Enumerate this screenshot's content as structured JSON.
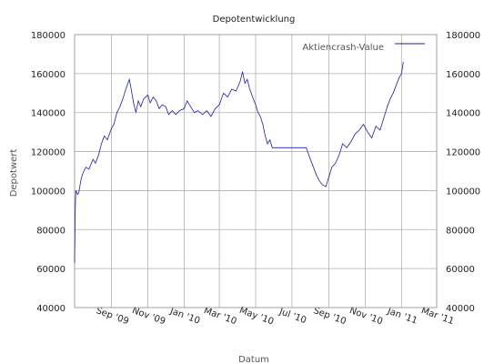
{
  "chart_data": {
    "type": "line",
    "title": "Depotentwicklung",
    "xlabel": "Datum",
    "ylabel": "Depotwert",
    "ylim": [
      40000,
      180000
    ],
    "y_ticks": [
      40000,
      60000,
      80000,
      100000,
      120000,
      140000,
      160000,
      180000
    ],
    "x_range": [
      "2009-07-01",
      "2011-03-01"
    ],
    "x_ticks": [
      {
        "date": "2009-09-01",
        "label": "Sep '09"
      },
      {
        "date": "2009-11-01",
        "label": "Nov '09"
      },
      {
        "date": "2010-01-01",
        "label": "Jan '10"
      },
      {
        "date": "2010-03-01",
        "label": "Mar '10"
      },
      {
        "date": "2010-05-01",
        "label": "May '10"
      },
      {
        "date": "2010-07-01",
        "label": "Jul '10"
      },
      {
        "date": "2010-09-01",
        "label": "Sep '10"
      },
      {
        "date": "2010-11-01",
        "label": "Nov '10"
      },
      {
        "date": "2011-01-01",
        "label": "Jan '11"
      },
      {
        "date": "2011-03-01",
        "label": "Mar '11"
      }
    ],
    "grid": true,
    "legend_position": "top-right",
    "series": [
      {
        "name": "Aktiencrash-Value",
        "color": "#1f1f9f",
        "points": [
          [
            "2009-07-01",
            63000
          ],
          [
            "2009-07-02",
            90000
          ],
          [
            "2009-07-03",
            100000
          ],
          [
            "2009-07-06",
            98000
          ],
          [
            "2009-07-08",
            99000
          ],
          [
            "2009-07-12",
            106000
          ],
          [
            "2009-07-15",
            109000
          ],
          [
            "2009-07-20",
            112000
          ],
          [
            "2009-07-25",
            111000
          ],
          [
            "2009-08-01",
            116000
          ],
          [
            "2009-08-05",
            114000
          ],
          [
            "2009-08-10",
            118000
          ],
          [
            "2009-08-15",
            124000
          ],
          [
            "2009-08-20",
            128000
          ],
          [
            "2009-08-25",
            126000
          ],
          [
            "2009-09-01",
            132000
          ],
          [
            "2009-09-05",
            134000
          ],
          [
            "2009-09-10",
            140000
          ],
          [
            "2009-09-15",
            143000
          ],
          [
            "2009-09-20",
            147000
          ],
          [
            "2009-09-25",
            152000
          ],
          [
            "2009-10-01",
            157000
          ],
          [
            "2009-10-04",
            152000
          ],
          [
            "2009-10-08",
            145000
          ],
          [
            "2009-10-12",
            140000
          ],
          [
            "2009-10-16",
            146000
          ],
          [
            "2009-10-20",
            143000
          ],
          [
            "2009-10-25",
            147000
          ],
          [
            "2009-11-01",
            149000
          ],
          [
            "2009-11-05",
            145000
          ],
          [
            "2009-11-10",
            148000
          ],
          [
            "2009-11-15",
            146000
          ],
          [
            "2009-11-20",
            142000
          ],
          [
            "2009-11-25",
            144000
          ],
          [
            "2009-12-01",
            143000
          ],
          [
            "2009-12-06",
            139000
          ],
          [
            "2009-12-12",
            141000
          ],
          [
            "2009-12-18",
            139000
          ],
          [
            "2009-12-24",
            141000
          ],
          [
            "2010-01-01",
            142000
          ],
          [
            "2010-01-06",
            146000
          ],
          [
            "2010-01-12",
            143000
          ],
          [
            "2010-01-18",
            140000
          ],
          [
            "2010-01-24",
            141000
          ],
          [
            "2010-02-01",
            139000
          ],
          [
            "2010-02-08",
            141000
          ],
          [
            "2010-02-15",
            138000
          ],
          [
            "2010-02-22",
            142000
          ],
          [
            "2010-03-01",
            144000
          ],
          [
            "2010-03-08",
            150000
          ],
          [
            "2010-03-15",
            148000
          ],
          [
            "2010-03-22",
            152000
          ],
          [
            "2010-03-29",
            151000
          ],
          [
            "2010-04-05",
            156000
          ],
          [
            "2010-04-09",
            161000
          ],
          [
            "2010-04-13",
            155000
          ],
          [
            "2010-04-17",
            157000
          ],
          [
            "2010-04-21",
            152000
          ],
          [
            "2010-04-26",
            148000
          ],
          [
            "2010-05-01",
            144000
          ],
          [
            "2010-05-05",
            140000
          ],
          [
            "2010-05-09",
            138000
          ],
          [
            "2010-05-13",
            134000
          ],
          [
            "2010-05-17",
            128000
          ],
          [
            "2010-05-21",
            124000
          ],
          [
            "2010-05-25",
            126000
          ],
          [
            "2010-05-29",
            122000
          ],
          [
            "2010-06-02",
            122000
          ],
          [
            "2010-06-30",
            122000
          ],
          [
            "2010-07-25",
            122000
          ],
          [
            "2010-08-01",
            116000
          ],
          [
            "2010-08-06",
            112000
          ],
          [
            "2010-08-11",
            108000
          ],
          [
            "2010-08-16",
            105000
          ],
          [
            "2010-08-21",
            103000
          ],
          [
            "2010-08-27",
            102000
          ],
          [
            "2010-09-01",
            107000
          ],
          [
            "2010-09-06",
            112000
          ],
          [
            "2010-09-12",
            114000
          ],
          [
            "2010-09-18",
            118000
          ],
          [
            "2010-09-24",
            124000
          ],
          [
            "2010-10-01",
            122000
          ],
          [
            "2010-10-08",
            125000
          ],
          [
            "2010-10-15",
            129000
          ],
          [
            "2010-10-22",
            131000
          ],
          [
            "2010-10-29",
            134000
          ],
          [
            "2010-11-05",
            130000
          ],
          [
            "2010-11-12",
            127000
          ],
          [
            "2010-11-19",
            133000
          ],
          [
            "2010-11-26",
            131000
          ],
          [
            "2010-12-03",
            138000
          ],
          [
            "2010-12-08",
            143000
          ],
          [
            "2010-12-13",
            147000
          ],
          [
            "2010-12-18",
            150000
          ],
          [
            "2010-12-23",
            154000
          ],
          [
            "2010-12-28",
            158000
          ],
          [
            "2011-01-01",
            160000
          ],
          [
            "2011-01-04",
            166000
          ]
        ]
      }
    ]
  }
}
